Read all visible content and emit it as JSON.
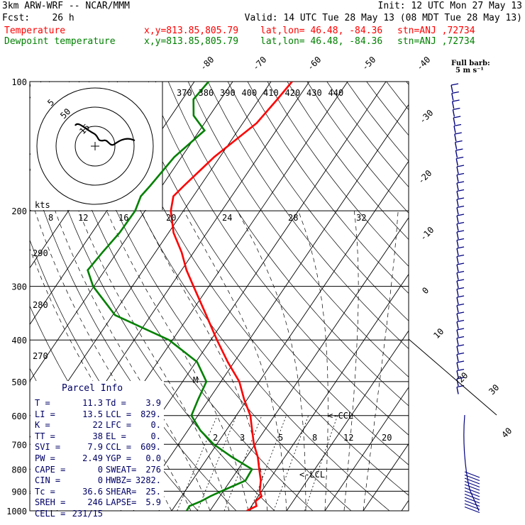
{
  "header": {
    "line1_left": "3km ARW-WRF -- NCAR/MMM",
    "line1_right": "Init: 12 UTC Mon 27 May 13",
    "line2_left": "Fcst:    26 h",
    "line2_right": "Valid: 14 UTC Tue 28 May 13 (08 MDT Tue 28 May 13)"
  },
  "legend": [
    {
      "name": "Temperature",
      "coords": "x,y=813.85,805.79",
      "latlon": "lat,lon= 46.48, -84.36",
      "station": "stn=ANJ ,72734",
      "color": "#ff0000"
    },
    {
      "name": "Dewpoint temperature",
      "coords": "x,y=813.85,805.79",
      "latlon": "lat,lon= 46.48, -84.36",
      "station": "stn=ANJ ,72734",
      "color": "#008000"
    }
  ],
  "wind_barb_note": [
    "Full barb:",
    "5 m s⁻¹"
  ],
  "parcel_info": {
    "title": "Parcel Info",
    "rows": [
      [
        "T    =",
        "11.3",
        "Td =",
        "3.9"
      ],
      [
        "LI   =",
        "13.5",
        "LCL =",
        "829."
      ],
      [
        "K    =",
        "22",
        "LFC =",
        "0."
      ],
      [
        "TT   =",
        "38",
        "EL  =",
        "0."
      ],
      [
        "SVI  =",
        "7.9",
        "CCL =",
        "609."
      ],
      [
        "PW   =",
        "2.49",
        "YGP =",
        "0.0"
      ],
      [
        "CAPE =",
        "0",
        "SWEAT=",
        "276"
      ],
      [
        "CIN  =",
        "0",
        "HWBZ=",
        "3282."
      ],
      [
        "Tc   =",
        "36.6",
        "SHEAR=",
        "25."
      ],
      [
        "SREH =",
        "246",
        "LAPSE=",
        "5.9"
      ],
      [
        "CELL =",
        "231/15",
        "",
        ""
      ]
    ]
  },
  "markers": {
    "ccl": "<-CCL",
    "lcl": "<-LCL",
    "m": "M",
    "kts": "kts"
  },
  "chart_data": {
    "type": "line",
    "subtype": "skew-T log-p diagram",
    "y_axis": {
      "scale": "log",
      "range": [
        1000,
        100
      ],
      "ticks": [
        100,
        200,
        300,
        400,
        500,
        600,
        700,
        800,
        900,
        1000
      ]
    },
    "isotherm_labels": [
      "-80",
      "-70",
      "-60",
      "-50",
      "-40",
      "-30",
      "-20",
      "-10",
      "0",
      "10",
      "20",
      "30",
      "40"
    ],
    "theta_labels": [
      "370",
      "380",
      "390",
      "400",
      "410",
      "420",
      "430",
      "440"
    ],
    "theta_e_labels": [
      "290",
      "280",
      "270"
    ],
    "mixing_ratio_labels_upper": [
      "8",
      "12",
      "16",
      "20",
      "24",
      "28",
      "32"
    ],
    "mixing_ratio_labels_lower": [
      "2",
      "3",
      "5",
      "8",
      "12",
      "20"
    ],
    "hodograph_rings": [
      "5",
      "50",
      "15"
    ],
    "series": [
      {
        "name": "Temperature",
        "color": "#ff0000",
        "points": [
          [
            1000,
            9.6
          ],
          [
            975,
            11.3
          ],
          [
            950,
            10.2
          ],
          [
            925,
            10.9
          ],
          [
            900,
            9.5
          ],
          [
            850,
            7.9
          ],
          [
            800,
            5.5
          ],
          [
            750,
            3.0
          ],
          [
            700,
            -0.3
          ],
          [
            650,
            -3.2
          ],
          [
            600,
            -6.3
          ],
          [
            550,
            -10.8
          ],
          [
            500,
            -15.2
          ],
          [
            450,
            -21.7
          ],
          [
            400,
            -28.4
          ],
          [
            350,
            -35.6
          ],
          [
            300,
            -44.0
          ],
          [
            275,
            -48.7
          ],
          [
            250,
            -53.1
          ],
          [
            225,
            -58.7
          ],
          [
            200,
            -63.3
          ],
          [
            185,
            -65.2
          ],
          [
            175,
            -64.3
          ],
          [
            150,
            -61.5
          ],
          [
            125,
            -56.4
          ],
          [
            110,
            -55.2
          ],
          [
            100,
            -54.5
          ]
        ]
      },
      {
        "name": "Dewpoint temperature",
        "color": "#008000",
        "points": [
          [
            1000,
            -6.1
          ],
          [
            975,
            -6.2
          ],
          [
            950,
            -4.0
          ],
          [
            925,
            -2.5
          ],
          [
            900,
            -0.5
          ],
          [
            850,
            3.9
          ],
          [
            800,
            3.6
          ],
          [
            750,
            -3.7
          ],
          [
            700,
            -10.8
          ],
          [
            650,
            -16.7
          ],
          [
            600,
            -21.7
          ],
          [
            550,
            -22.8
          ],
          [
            500,
            -23.8
          ],
          [
            450,
            -29.7
          ],
          [
            400,
            -40.9
          ],
          [
            350,
            -59.4
          ],
          [
            300,
            -70.2
          ],
          [
            275,
            -74.5
          ],
          [
            250,
            -73.8
          ],
          [
            225,
            -72.8
          ],
          [
            200,
            -72.6
          ],
          [
            185,
            -73.7
          ],
          [
            175,
            -73.1
          ],
          [
            150,
            -71.9
          ],
          [
            130,
            -68.7
          ],
          [
            120,
            -74.2
          ],
          [
            110,
            -77.1
          ],
          [
            100,
            -76.3
          ]
        ]
      }
    ]
  }
}
